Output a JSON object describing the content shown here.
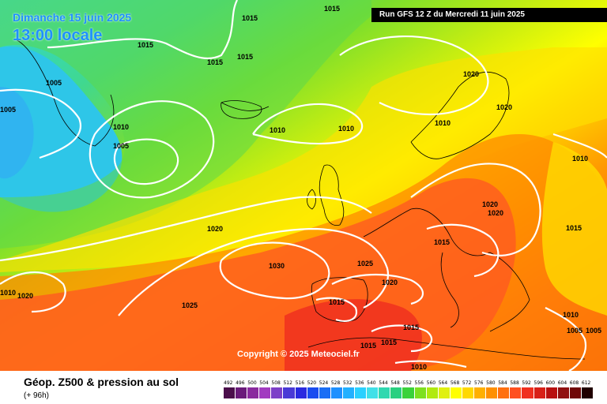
{
  "header": {
    "date_text": "Dimanche 15 juin 2025",
    "time_text": "13:00 locale",
    "run_text": "Run GFS 12 Z du Mercredi 11 juin 2025"
  },
  "copyright": "Copyright © 2025 Meteociel.fr",
  "product": {
    "title": "Géop. Z500 & pression au sol",
    "lead": "(+ 96h)"
  },
  "isobar_labels": [
    "1015",
    "1015",
    "1015",
    "1015",
    "1015",
    "1005",
    "1005",
    "1010",
    "1005",
    "1010",
    "1010",
    "1020",
    "1020",
    "1010",
    "1020",
    "1020",
    "1010",
    "1020",
    "1015",
    "1030",
    "1025",
    "1015",
    "1020",
    "1015",
    "1025",
    "1015",
    "1015",
    "1015",
    "1010",
    "1010",
    "1005",
    "1005",
    "1010",
    "1020"
  ],
  "legend": {
    "values": [
      "492",
      "496",
      "500",
      "504",
      "508",
      "512",
      "516",
      "520",
      "524",
      "528",
      "532",
      "536",
      "540",
      "544",
      "548",
      "552",
      "556",
      "560",
      "564",
      "568",
      "572",
      "576",
      "580",
      "584",
      "588",
      "592",
      "596",
      "600",
      "604",
      "608",
      "612"
    ],
    "colors": [
      "#4b0f4b",
      "#6a1a7a",
      "#8a2a9e",
      "#a23bc0",
      "#7d3fc8",
      "#4a3ad6",
      "#2a2ae0",
      "#1a4cf0",
      "#1a6ef5",
      "#1e90ff",
      "#22b0ff",
      "#2ad0ff",
      "#40e0e8",
      "#30d8b0",
      "#2ad080",
      "#3ad23a",
      "#7de020",
      "#b0ea10",
      "#e0f010",
      "#ffff00",
      "#ffd800",
      "#ffb000",
      "#ff9000",
      "#ff7010",
      "#ff5020",
      "#f03020",
      "#d82018",
      "#b81010",
      "#901010",
      "#700808",
      "#200000"
    ]
  }
}
